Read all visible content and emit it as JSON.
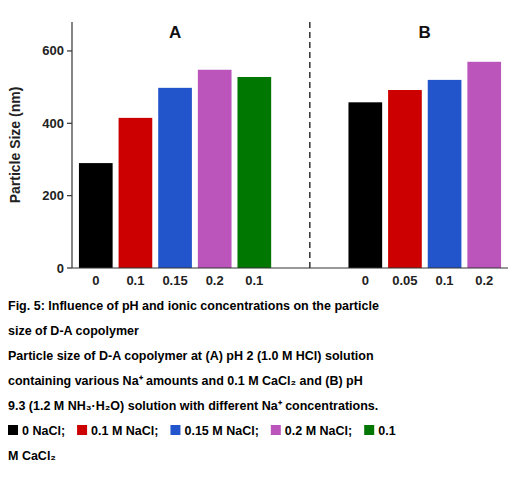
{
  "chart_data": {
    "type": "bar",
    "groups": [
      {
        "name": "A",
        "categories": [
          "0",
          "0.1",
          "0.15",
          "0.2",
          "0.1"
        ],
        "values": [
          290,
          415,
          498,
          548,
          528
        ],
        "colors": [
          "#000000",
          "#cc0000",
          "#2255cc",
          "#bb55bb",
          "#007700"
        ]
      },
      {
        "name": "B",
        "categories": [
          "0",
          "0.05",
          "0.1",
          "0.2"
        ],
        "values": [
          458,
          492,
          520,
          570
        ],
        "colors": [
          "#000000",
          "#cc0000",
          "#2255cc",
          "#bb55bb"
        ]
      }
    ],
    "ylabel": "Particle Size (nm)",
    "ylim": [
      0,
      680
    ],
    "yticks": [
      0,
      200,
      400,
      600
    ],
    "grid": false,
    "caption": [
      "Fig. 5: Influence of pH and ionic concentrations on the particle",
      "size of D-A copolymer",
      "Particle size of D-A copolymer at (A) pH 2 (1.0 M HCl) solution",
      "containing various Na⁺ amounts and 0.1 M CaCl₂ and (B) pH",
      "9.3 (1.2 M NH₃·H₂O) solution with different Na⁺ concentrations."
    ],
    "legend_items": [
      {
        "label": "0 NaCl;",
        "color": "#000000"
      },
      {
        "label": "0.1 M NaCl;",
        "color": "#cc0000"
      },
      {
        "label": "0.15 M NaCl;",
        "color": "#2255cc"
      },
      {
        "label": "0.2 M NaCl;",
        "color": "#bb55bb"
      },
      {
        "label": "0.1",
        "color": "#007700"
      }
    ],
    "legend_continuation": "M CaCl₂"
  }
}
